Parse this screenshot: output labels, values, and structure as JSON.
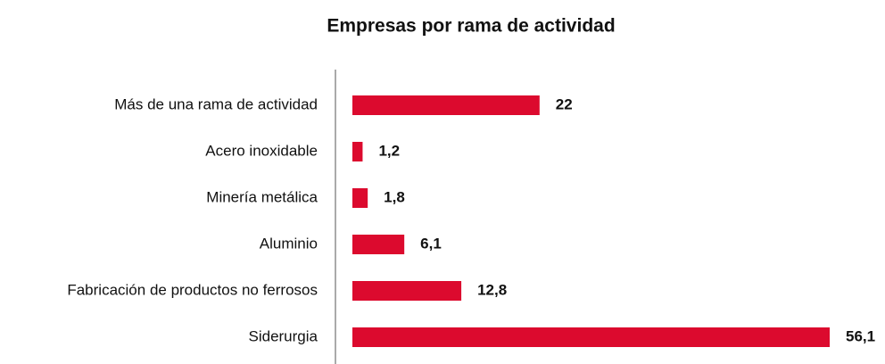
{
  "chart_data": {
    "type": "hbar",
    "title": "Empresas por rama de actividad",
    "categories": [
      "Más de una rama de actividad",
      "Acero inoxidable",
      "Minería metálica",
      "Aluminio",
      "Fabricación de productos no ferrosos",
      "Siderurgia"
    ],
    "values": [
      22,
      1.2,
      1.8,
      6.1,
      12.8,
      56.1
    ],
    "value_labels": [
      "22",
      "1,2",
      "1,8",
      "6,1",
      "12,8",
      "56,1"
    ],
    "color": "#dc0a2e"
  }
}
